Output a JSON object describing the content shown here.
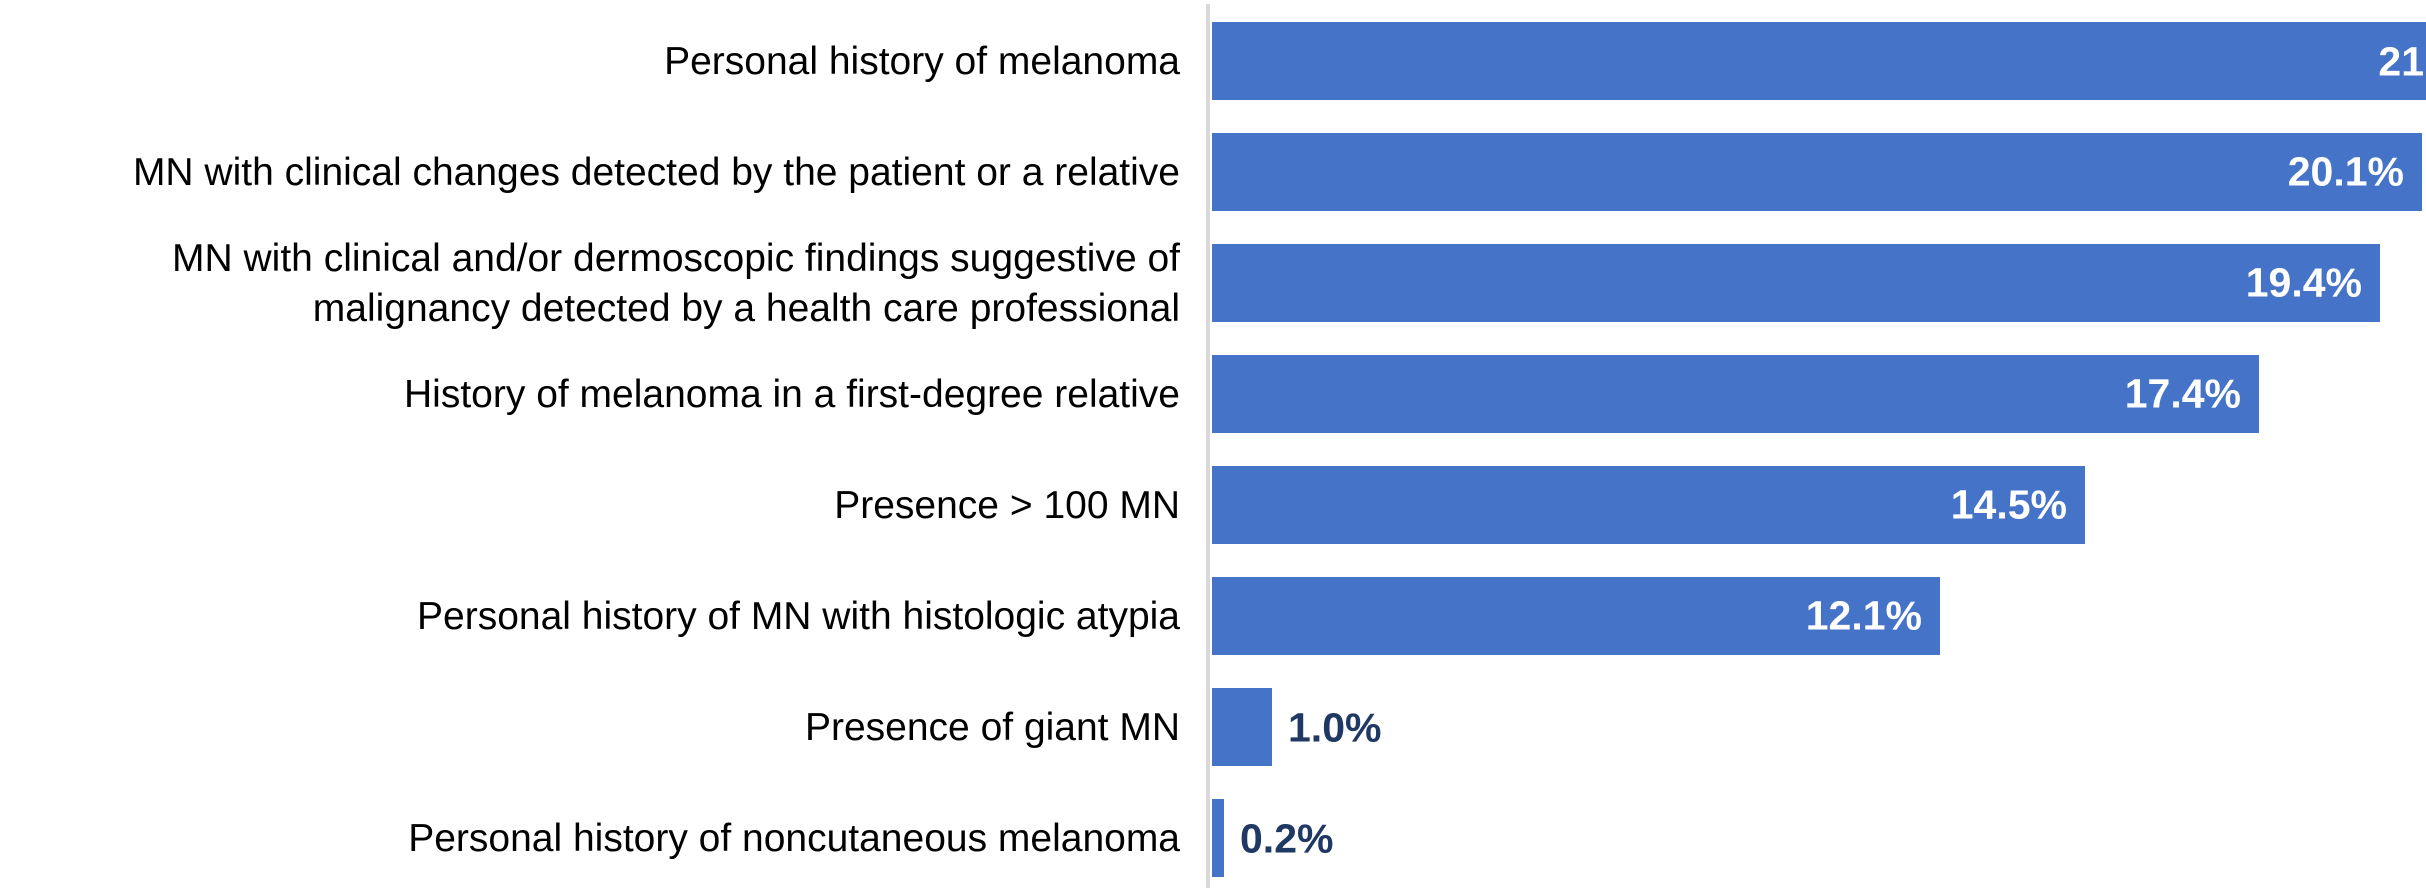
{
  "chart_data": {
    "type": "bar",
    "orientation": "horizontal",
    "title": "",
    "xlabel": "",
    "ylabel": "",
    "grid": false,
    "legend": false,
    "axis_max_visible_percent": 20.2,
    "note": "topmost bar and its data label are clipped at the right edge of the image",
    "bar_color": "#4573C7",
    "inside_label_color": "#FFFFFF",
    "outside_label_color": "#1F3864",
    "axis_line_color": "#D9D9D9",
    "categories": [
      "Personal history of melanoma",
      "MN with clinical changes detected by the patient or a relative",
      "MN with clinical and/or dermoscopic findings suggestive of\nmalignancy detected by a health care professional",
      "History of melanoma in a first-degree relative",
      "Presence > 100 MN",
      "Personal history of MN with histologic atypia",
      "Presence of giant MN",
      "Personal history of noncutaneous melanoma"
    ],
    "values": [
      21.0,
      20.1,
      19.4,
      17.4,
      14.5,
      12.1,
      1.0,
      0.2
    ],
    "value_labels": [
      "21",
      "20.1%",
      "19.4%",
      "17.4%",
      "14.5%",
      "12.1%",
      "1.0%",
      "0.2%"
    ],
    "label_positions": [
      "edge-clipped",
      "inside",
      "inside",
      "inside",
      "inside",
      "inside",
      "outside",
      "outside"
    ]
  }
}
